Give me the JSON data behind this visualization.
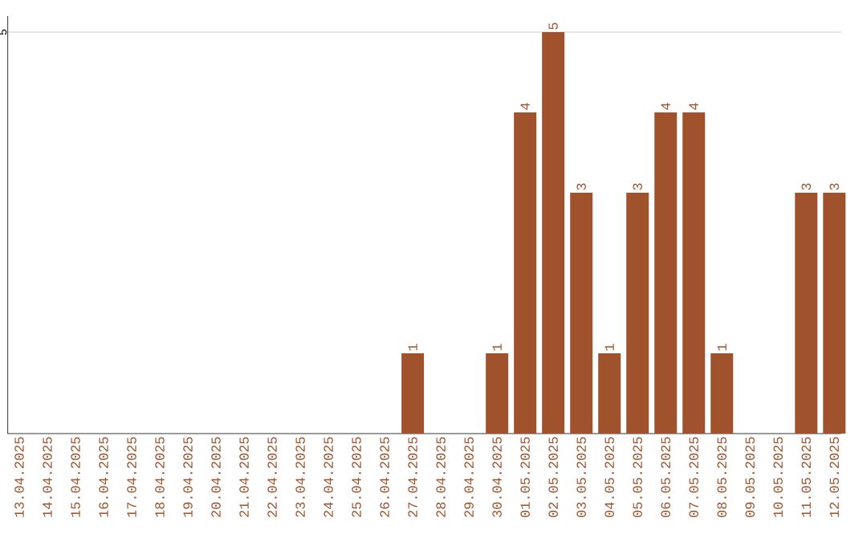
{
  "chart_data": {
    "type": "bar",
    "categories": [
      "13.04.2025",
      "14.04.2025",
      "15.04.2025",
      "16.04.2025",
      "17.04.2025",
      "18.04.2025",
      "19.04.2025",
      "20.04.2025",
      "21.04.2025",
      "22.04.2025",
      "23.04.2025",
      "24.04.2025",
      "25.04.2025",
      "26.04.2025",
      "27.04.2025",
      "28.04.2025",
      "29.04.2025",
      "30.04.2025",
      "01.05.2025",
      "02.05.2025",
      "03.05.2025",
      "04.05.2025",
      "05.05.2025",
      "06.05.2025",
      "07.05.2025",
      "08.05.2025",
      "09.05.2025",
      "10.05.2025",
      "11.05.2025",
      "12.05.2025"
    ],
    "values": [
      null,
      null,
      null,
      null,
      null,
      null,
      null,
      null,
      null,
      null,
      null,
      null,
      null,
      null,
      1,
      null,
      null,
      1,
      4,
      5,
      3,
      1,
      3,
      4,
      4,
      1,
      null,
      null,
      3,
      3
    ],
    "value_labels": [
      null,
      null,
      null,
      null,
      null,
      null,
      null,
      null,
      null,
      null,
      null,
      null,
      null,
      null,
      "1",
      null,
      null,
      "1",
      "4",
      "5",
      "3",
      "1",
      "3",
      "4",
      "4",
      "1",
      null,
      null,
      "3",
      "3"
    ],
    "color": "#a0522d",
    "ylim": [
      0,
      5.2
    ],
    "yticks": [
      5
    ],
    "grid": "y"
  }
}
